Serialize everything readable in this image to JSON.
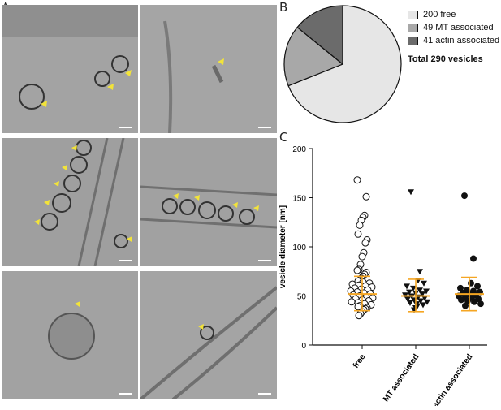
{
  "figure": {
    "panel_a_label": "A",
    "panel_b_label": "B",
    "panel_c_label": "C",
    "tiles": [
      {
        "name": "tile-1"
      },
      {
        "name": "tile-2"
      },
      {
        "name": "tile-3"
      },
      {
        "name": "tile-4"
      },
      {
        "name": "tile-5"
      },
      {
        "name": "tile-6"
      }
    ]
  },
  "colors": {
    "free": "#e6e6e6",
    "mt": "#a8a8a8",
    "actin": "#6b6b6b",
    "error_bar": "#f5a623",
    "arrow": "#f2e33a"
  },
  "chart_data": [
    {
      "type": "pie",
      "title": "",
      "slices": [
        {
          "label": "200 free",
          "value": 200
        },
        {
          "label": "49 MT associated",
          "value": 49
        },
        {
          "label": "41 actin associated",
          "value": 41
        }
      ],
      "annotation": "Total 290 vesicles",
      "legend_position": "right"
    },
    {
      "type": "scatter",
      "title": "",
      "ylabel": "vesicle diameter [nm]",
      "xlabel": "",
      "ylim": [
        0,
        200
      ],
      "yticks": [
        0,
        50,
        100,
        150,
        200
      ],
      "categories": [
        "free",
        "MT associated",
        "actin associated"
      ],
      "markers": [
        "open-circle",
        "filled-triangle",
        "filled-circle"
      ],
      "summary": [
        {
          "category": "free",
          "mean": 52,
          "sd_low": 35,
          "sd_high": 70
        },
        {
          "category": "MT associated",
          "mean": 50,
          "sd_low": 34,
          "sd_high": 67
        },
        {
          "category": "actin associated",
          "mean": 52,
          "sd_low": 35,
          "sd_high": 69
        }
      ],
      "outliers": [
        {
          "category": "free",
          "values": [
            168,
            151,
            132,
            130,
            127,
            122,
            113,
            107,
            104,
            94,
            90,
            82,
            77,
            76,
            74,
            72,
            70,
            68,
            66,
            65,
            64,
            63,
            62,
            61,
            60,
            59,
            58,
            57,
            56,
            55,
            54,
            53,
            52,
            51,
            50,
            49,
            48,
            47,
            46,
            45,
            44,
            43,
            42,
            41,
            40,
            39,
            38,
            37,
            36,
            34,
            32,
            30
          ]
        },
        {
          "category": "MT associated",
          "values": [
            156,
            75,
            66,
            63,
            60,
            58,
            56,
            55,
            54,
            53,
            52,
            51,
            50,
            49,
            48,
            47,
            46,
            45,
            44,
            43,
            42,
            41,
            40,
            38,
            36
          ]
        },
        {
          "category": "actin associated",
          "values": [
            152,
            88,
            63,
            60,
            58,
            56,
            55,
            54,
            53,
            52,
            51,
            50,
            49,
            48,
            47,
            46,
            45,
            44,
            42,
            40
          ]
        }
      ]
    }
  ]
}
